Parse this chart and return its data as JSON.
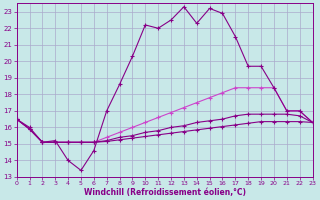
{
  "xlabel": "Windchill (Refroidissement éolien,°C)",
  "bg_color": "#c8e8e8",
  "grid_color": "#aaaacc",
  "line_color": "#880088",
  "line_color_light": "#cc44cc",
  "xlim": [
    0,
    23
  ],
  "ylim": [
    13,
    23.5
  ],
  "yticks": [
    13,
    14,
    15,
    16,
    17,
    18,
    19,
    20,
    21,
    22,
    23
  ],
  "xticks": [
    0,
    1,
    2,
    3,
    4,
    5,
    6,
    7,
    8,
    9,
    10,
    11,
    12,
    13,
    14,
    15,
    16,
    17,
    18,
    19,
    20,
    21,
    22,
    23
  ],
  "line1_x": [
    0,
    1,
    2,
    3,
    4,
    5,
    6,
    7,
    8,
    9,
    10,
    11,
    12,
    13,
    14,
    15,
    16,
    17,
    18,
    19,
    20,
    21,
    22,
    23
  ],
  "line1_y": [
    16.5,
    16.0,
    15.1,
    15.2,
    14.0,
    13.4,
    14.6,
    17.0,
    18.6,
    20.3,
    22.2,
    22.0,
    22.5,
    23.3,
    22.3,
    23.2,
    22.9,
    21.5,
    19.7,
    19.7,
    18.4,
    17.0,
    17.0,
    16.3
  ],
  "line2_x": [
    0,
    1,
    2,
    3,
    4,
    5,
    6,
    7,
    8,
    9,
    10,
    11,
    12,
    13,
    14,
    15,
    16,
    17,
    18,
    19,
    20,
    21,
    22,
    23
  ],
  "line2_y": [
    16.5,
    15.9,
    15.1,
    15.1,
    15.1,
    15.1,
    15.1,
    15.4,
    15.7,
    16.0,
    16.3,
    16.6,
    16.9,
    17.2,
    17.5,
    17.8,
    18.1,
    18.4,
    18.4,
    18.4,
    18.4,
    17.0,
    17.0,
    16.3
  ],
  "line3_x": [
    0,
    1,
    2,
    3,
    4,
    5,
    6,
    7,
    8,
    9,
    10,
    11,
    12,
    13,
    14,
    15,
    16,
    17,
    18,
    19,
    20,
    21,
    22,
    23
  ],
  "line3_y": [
    16.5,
    15.9,
    15.1,
    15.1,
    15.1,
    15.1,
    15.1,
    15.2,
    15.4,
    15.5,
    15.7,
    15.8,
    16.0,
    16.1,
    16.3,
    16.4,
    16.5,
    16.7,
    16.8,
    16.8,
    16.8,
    16.8,
    16.7,
    16.3
  ],
  "line4_x": [
    0,
    1,
    2,
    3,
    4,
    5,
    6,
    7,
    8,
    9,
    10,
    11,
    12,
    13,
    14,
    15,
    16,
    17,
    18,
    19,
    20,
    21,
    22,
    23
  ],
  "line4_y": [
    16.5,
    15.9,
    15.1,
    15.1,
    15.1,
    15.1,
    15.1,
    15.15,
    15.25,
    15.35,
    15.45,
    15.55,
    15.65,
    15.75,
    15.85,
    15.95,
    16.05,
    16.15,
    16.25,
    16.35,
    16.35,
    16.35,
    16.35,
    16.3
  ]
}
